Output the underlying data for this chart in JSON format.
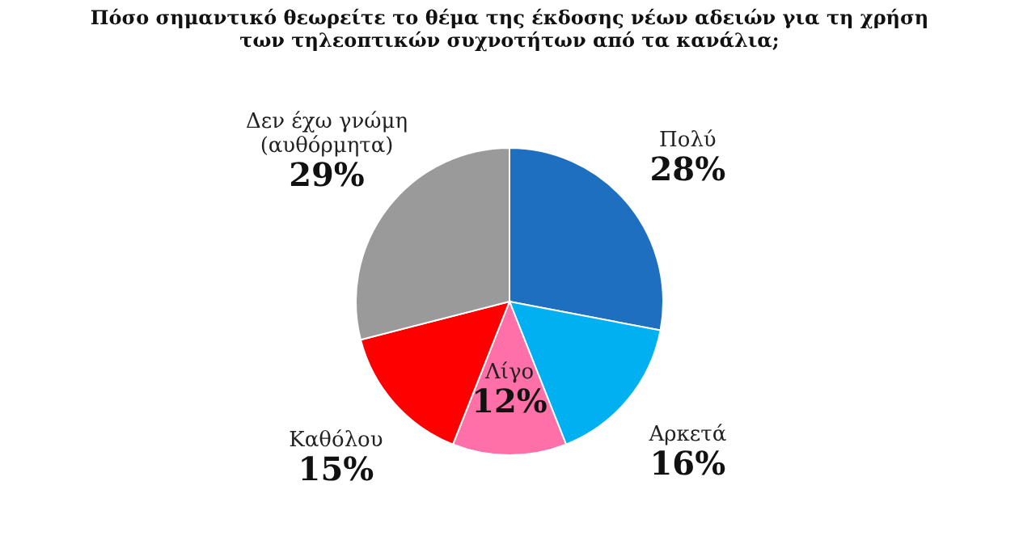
{
  "chart_data": {
    "type": "pie",
    "title": "Πόσο σημαντικό θεωρείτε το θέμα της έκδοσης νέων αδειών για τη χρήση των τηλεοπτικών συχνοτήτων από τα κανάλια;",
    "categories": [
      "Πολύ",
      "Αρκετά",
      "Λίγο",
      "Καθόλου",
      "Δεν έχω γνώμη (αυθόρμητα)"
    ],
    "values": [
      28,
      16,
      12,
      15,
      29
    ],
    "value_labels": [
      "28%",
      "16%",
      "12%",
      "15%",
      "29%"
    ],
    "colors": [
      "#1f6fc0",
      "#00b0f0",
      "#ff6fa8",
      "#ff0000",
      "#9a9a9a"
    ]
  }
}
